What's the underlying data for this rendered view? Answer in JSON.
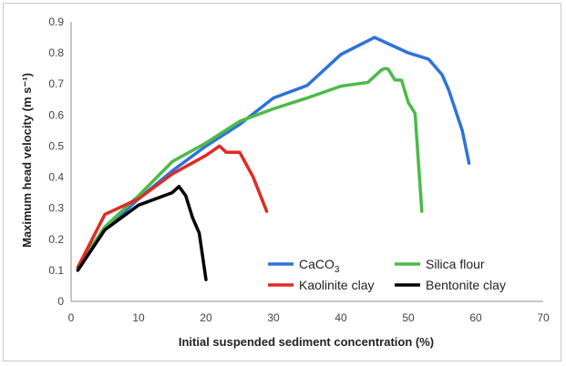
{
  "chart_data": {
    "type": "line",
    "xlabel": "Initial suspended sediment concentration (%)",
    "ylabel": "Maximum head velocity (m s⁻¹)",
    "xlim": [
      0,
      70
    ],
    "ylim": [
      0,
      0.9
    ],
    "xticks": [
      0,
      10,
      20,
      30,
      40,
      50,
      60,
      70
    ],
    "yticks": [
      0,
      0.1,
      0.2,
      0.3,
      0.4,
      0.5,
      0.6,
      0.7,
      0.8,
      0.9
    ],
    "grid": "none",
    "legend_placement": "bottom-right",
    "series": [
      {
        "name": "CaCO3",
        "color": "#2f72d8",
        "x": [
          1,
          5,
          10,
          15,
          20,
          25,
          30,
          35,
          40,
          45,
          50,
          53,
          55,
          56,
          58,
          59
        ],
        "y": [
          0.11,
          0.23,
          0.33,
          0.42,
          0.5,
          0.57,
          0.655,
          0.695,
          0.795,
          0.85,
          0.8,
          0.78,
          0.73,
          0.68,
          0.55,
          0.445
        ]
      },
      {
        "name": "Silica flour",
        "color": "#4cbb47",
        "x": [
          1,
          5,
          10,
          15,
          20,
          25,
          30,
          35,
          40,
          44,
          46,
          46.5,
          47,
          48,
          49,
          50,
          51,
          52
        ],
        "y": [
          0.11,
          0.24,
          0.34,
          0.45,
          0.51,
          0.58,
          0.62,
          0.655,
          0.693,
          0.705,
          0.745,
          0.75,
          0.748,
          0.713,
          0.712,
          0.64,
          0.605,
          0.29
        ]
      },
      {
        "name": "Kaolinite clay",
        "color": "#e02a24",
        "x": [
          1,
          5,
          10,
          15,
          20,
          22,
          23,
          25,
          27,
          29
        ],
        "y": [
          0.11,
          0.28,
          0.33,
          0.41,
          0.47,
          0.5,
          0.48,
          0.48,
          0.4,
          0.29
        ]
      },
      {
        "name": "Bentonite clay",
        "color": "#000000",
        "x": [
          1,
          5,
          10,
          15,
          16,
          17,
          18,
          19,
          20
        ],
        "y": [
          0.1,
          0.23,
          0.31,
          0.35,
          0.37,
          0.34,
          0.27,
          0.22,
          0.07
        ]
      }
    ]
  }
}
